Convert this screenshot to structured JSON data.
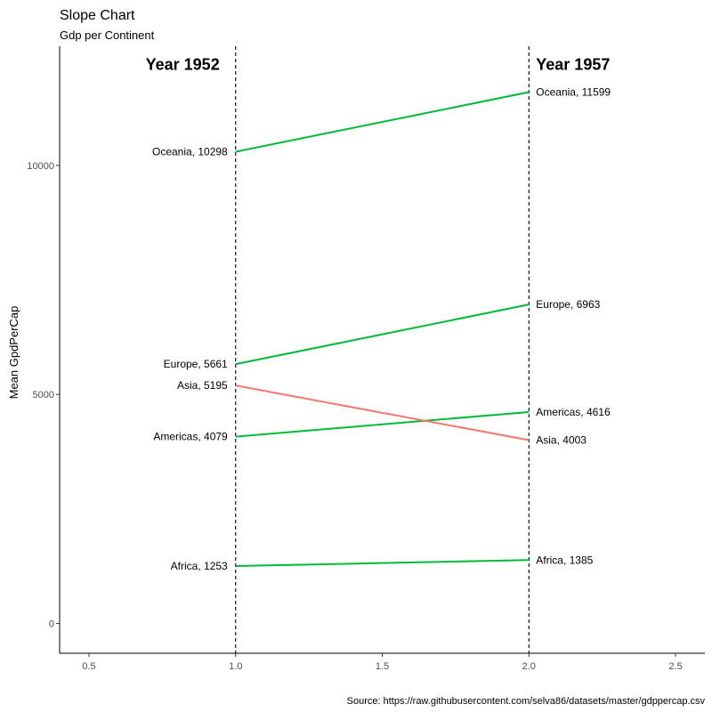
{
  "chart_data": {
    "type": "line",
    "title": "Slope Chart",
    "subtitle": "Gdp per Continent",
    "ylabel": "Mean GpdPerCap",
    "xlabel": "",
    "caption": "Source: https://raw.githubusercontent.com/selva86/datasets/master/gdppercap.csv",
    "year_labels": [
      "Year 1952",
      "Year 1957"
    ],
    "x": [
      1,
      2
    ],
    "xlim": [
      0.4,
      2.6
    ],
    "ylim": [
      -650,
      12600
    ],
    "x_ticks": [
      0.5,
      1.0,
      1.5,
      2.0,
      2.5
    ],
    "x_tick_labels": [
      "0.5",
      "1.0",
      "1.5",
      "2.0",
      "2.5"
    ],
    "y_ticks": [
      0,
      5000,
      10000
    ],
    "y_tick_labels": [
      "0",
      "5000",
      "10000"
    ],
    "grid": false,
    "legend": "none",
    "series": [
      {
        "name": "Africa",
        "values": [
          1253,
          1385
        ],
        "color": "#00ba38",
        "left_label": "Africa, 1253",
        "right_label": "Africa, 1385"
      },
      {
        "name": "Americas",
        "values": [
          4079,
          4616
        ],
        "color": "#00ba38",
        "left_label": "Americas, 4079",
        "right_label": "Americas, 4616"
      },
      {
        "name": "Asia",
        "values": [
          5195,
          4003
        ],
        "color": "#f8766d",
        "left_label": "Asia, 5195",
        "right_label": "Asia, 4003"
      },
      {
        "name": "Europe",
        "values": [
          5661,
          6963
        ],
        "color": "#00ba38",
        "left_label": "Europe, 5661",
        "right_label": "Europe, 6963"
      },
      {
        "name": "Oceania",
        "values": [
          10298,
          11599
        ],
        "color": "#00ba38",
        "left_label": "Oceania, 10298",
        "right_label": "Oceania, 11599"
      }
    ]
  }
}
